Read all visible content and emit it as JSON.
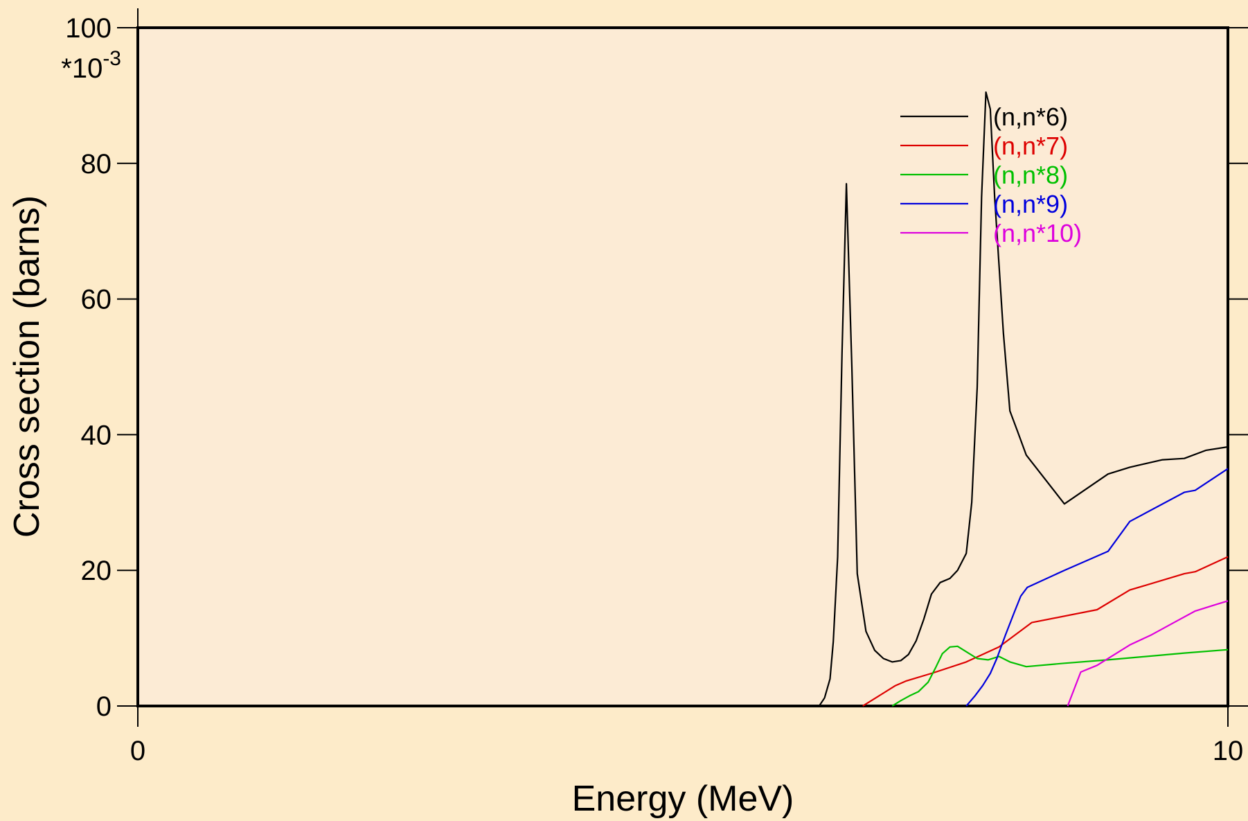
{
  "chart_data": {
    "type": "line",
    "xlabel": "Energy (MeV)",
    "ylabel": "Cross section (barns)",
    "y_multiplier": "*10",
    "y_multiplier_exp": "-3",
    "xlim": [
      0,
      10
    ],
    "ylim": [
      0,
      100
    ],
    "x_ticks": [
      0,
      10
    ],
    "x_tick_labels": [
      "0",
      "10"
    ],
    "y_ticks": [
      0,
      20,
      40,
      60,
      80,
      100
    ],
    "y_tick_labels": [
      "0",
      "20",
      "40",
      "60",
      "80",
      "100"
    ],
    "grid": false,
    "legend_position": "top-right",
    "series": [
      {
        "name": "(n,n*6)",
        "color": "#000000",
        "x": [
          0,
          6.25,
          6.3,
          6.35,
          6.38,
          6.42,
          6.46,
          6.5,
          6.55,
          6.6,
          6.68,
          6.76,
          6.84,
          6.92,
          7.0,
          7.07,
          7.14,
          7.21,
          7.28,
          7.36,
          7.45,
          7.52,
          7.6,
          7.65,
          7.7,
          7.74,
          7.78,
          7.82,
          7.86,
          7.9,
          7.94,
          8.0,
          8.07,
          8.15,
          8.5,
          8.9,
          9.1,
          9.4,
          9.6,
          9.8,
          10.0
        ],
        "y": [
          0,
          0,
          1.2,
          4,
          9.5,
          22,
          52,
          77,
          50,
          19.5,
          11,
          8.2,
          7,
          6.5,
          6.7,
          7.6,
          9.6,
          12.8,
          16.5,
          18.2,
          18.8,
          20,
          22.5,
          30,
          47,
          75,
          90.5,
          88,
          75,
          65,
          55,
          43.5,
          40.5,
          37,
          29.8,
          34.2,
          35.2,
          36.3,
          36.5,
          37.7,
          38.2
        ]
      },
      {
        "name": "(n,n*7)",
        "color": "#dd0000",
        "x": [
          6.65,
          6.8,
          6.95,
          7.05,
          7.3,
          7.6,
          7.9,
          8.2,
          8.8,
          9.1,
          9.6,
          9.7,
          10.0
        ],
        "y": [
          0,
          1.5,
          3,
          3.7,
          4.9,
          6.5,
          8.7,
          12.3,
          14.2,
          17.1,
          19.5,
          19.8,
          22
        ]
      },
      {
        "name": "(n,n*8)",
        "color": "#00c000",
        "x": [
          6.92,
          7.0,
          7.08,
          7.16,
          7.25,
          7.32,
          7.38,
          7.45,
          7.52,
          7.6,
          7.7,
          7.8,
          7.9,
          8.0,
          8.15,
          8.5,
          8.9,
          9.6,
          10.0
        ],
        "y": [
          0,
          0.8,
          1.5,
          2.1,
          3.5,
          5.7,
          7.7,
          8.7,
          8.8,
          8,
          7,
          6.8,
          7.3,
          6.5,
          5.8,
          6.3,
          6.8,
          7.8,
          8.3
        ]
      },
      {
        "name": "(n,n*9)",
        "color": "#0000dd",
        "x": [
          7.6,
          7.68,
          7.75,
          7.82,
          7.88,
          7.96,
          8.04,
          8.1,
          8.16,
          8.5,
          8.9,
          9.1,
          9.6,
          9.7,
          10.0
        ],
        "y": [
          0,
          1.5,
          3,
          4.8,
          7,
          10.5,
          13.8,
          16.2,
          17.5,
          20,
          22.8,
          27.2,
          31.5,
          31.8,
          35
        ]
      },
      {
        "name": "(n,n*10)",
        "color": "#dd00dd",
        "x": [
          8.53,
          8.65,
          8.8,
          9.1,
          9.3,
          9.55,
          9.7,
          9.9,
          10.0
        ],
        "y": [
          0,
          5,
          6,
          9,
          10.5,
          12.7,
          14,
          15,
          15.5
        ]
      }
    ]
  }
}
